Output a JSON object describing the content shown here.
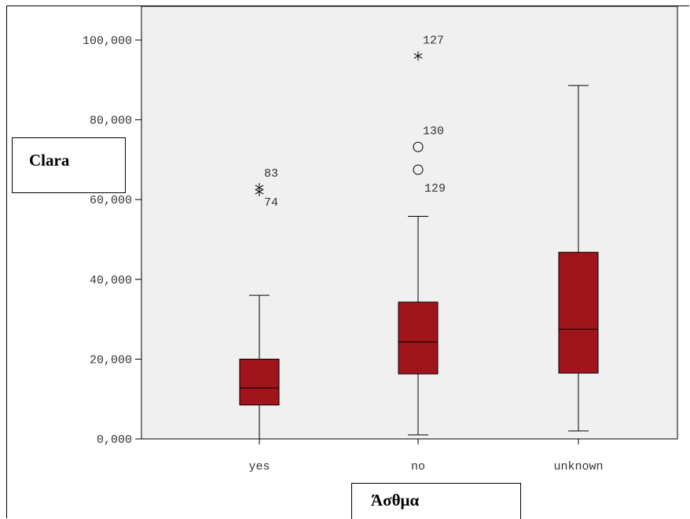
{
  "chart_data": {
    "type": "boxplot",
    "xlabel": "Άσθμα",
    "ylabel": "Clara",
    "ylim": [
      0,
      100
    ],
    "yticks": [
      0,
      20,
      40,
      60,
      80,
      100
    ],
    "ytick_labels": [
      "0,000",
      "20,000",
      "40,000",
      "60,000",
      "80,000",
      "100,000"
    ],
    "categories": [
      "yes",
      "no",
      "unknown"
    ],
    "boxes": [
      {
        "category": "yes",
        "whisker_low": 0,
        "q1": 8.5,
        "median": 12.8,
        "q3": 20,
        "whisker_high": 36
      },
      {
        "category": "no",
        "whisker_low": 1,
        "q1": 16.3,
        "median": 24.3,
        "q3": 34.3,
        "whisker_high": 55.8
      },
      {
        "category": "unknown",
        "whisker_low": 2,
        "q1": 16.5,
        "median": 27.5,
        "q3": 46.8,
        "whisker_high": 88.6
      }
    ],
    "outliers": [
      {
        "category": "yes",
        "value": 63,
        "marker": "star",
        "label": "83"
      },
      {
        "category": "yes",
        "value": 62,
        "marker": "star",
        "label": "74"
      },
      {
        "category": "no",
        "value": 96,
        "marker": "star",
        "label": "127"
      },
      {
        "category": "no",
        "value": 73.2,
        "marker": "circle",
        "label": "130"
      },
      {
        "category": "no",
        "value": 67.5,
        "marker": "circle",
        "label": "129"
      }
    ],
    "colors": {
      "box_fill": "#a0151b",
      "plot_background": "#f0f0f0",
      "line": "#000000"
    }
  }
}
